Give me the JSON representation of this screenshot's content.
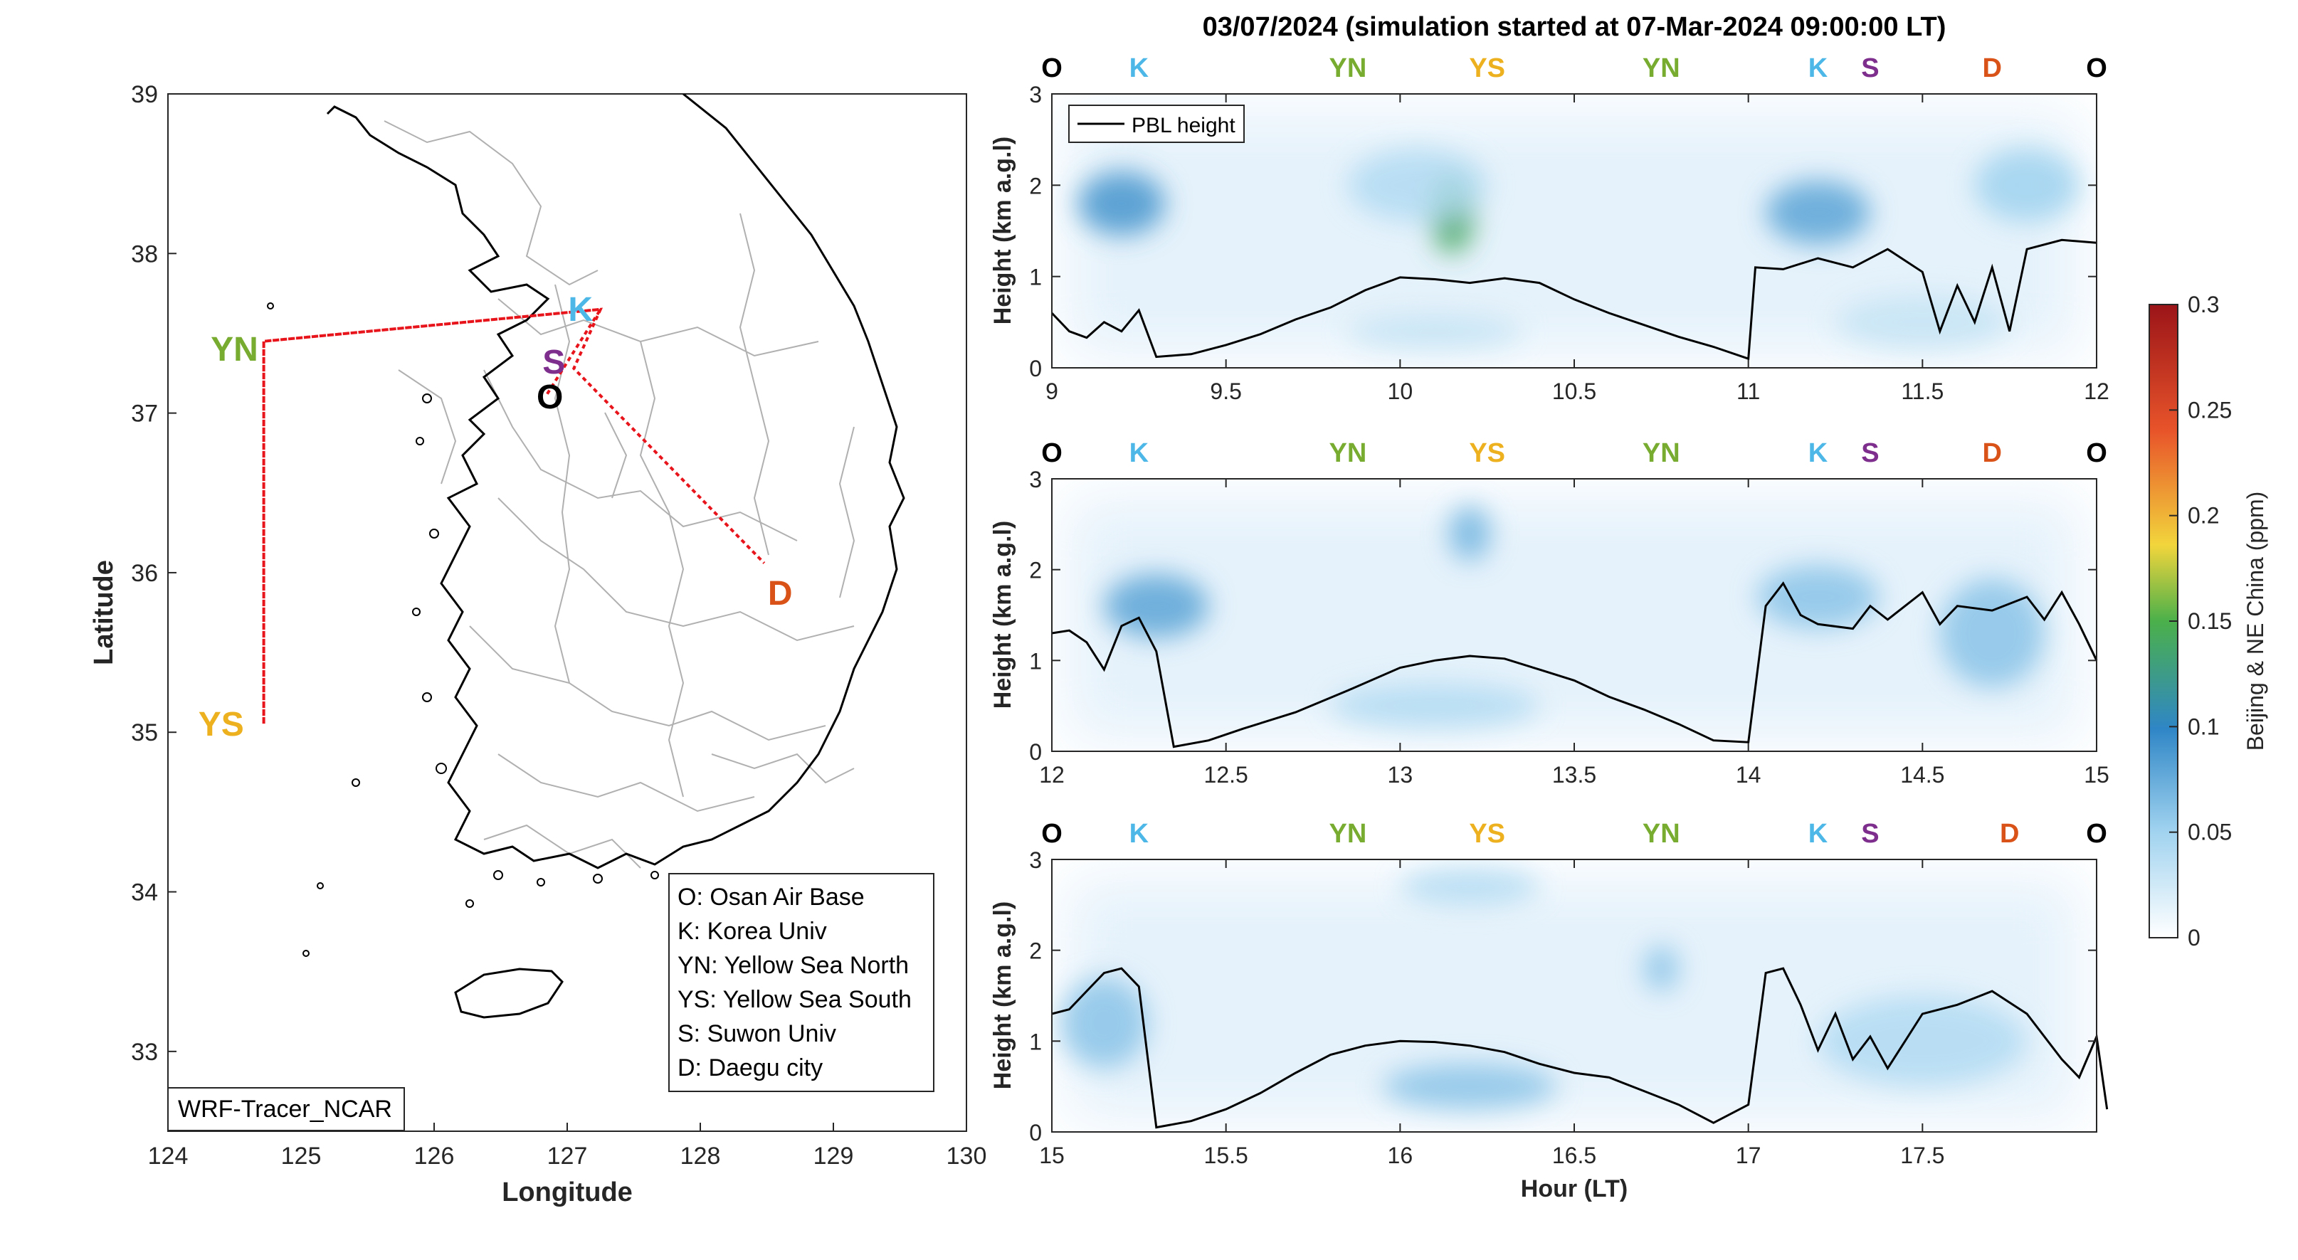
{
  "title": "03/07/2024 (simulation started at 07-Mar-2024 09:00:00 LT)",
  "colors": {
    "O": "#000000",
    "K": "#4db8e8",
    "YN": "#77ac30",
    "YS": "#edb120",
    "S": "#7e2f8e",
    "D": "#d95319",
    "route": "#e8141b",
    "pbl": "#000000"
  },
  "map": {
    "xlabel": "Longitude",
    "ylabel": "Latitude",
    "xlim": [
      124,
      130
    ],
    "ylim": [
      32.5,
      39
    ],
    "xticks": [
      "124",
      "125",
      "126",
      "127",
      "128",
      "129",
      "130"
    ],
    "yticks": [
      "33",
      "34",
      "35",
      "36",
      "37",
      "38",
      "39"
    ],
    "sites": [
      {
        "code": "O",
        "lon": 126.87,
        "lat": 37.1
      },
      {
        "code": "K",
        "lon": 127.1,
        "lat": 37.65
      },
      {
        "code": "YN",
        "lon": 124.5,
        "lat": 37.4
      },
      {
        "code": "YS",
        "lon": 124.4,
        "lat": 35.05
      },
      {
        "code": "S",
        "lon": 126.9,
        "lat": 37.32
      },
      {
        "code": "D",
        "lon": 128.6,
        "lat": 35.87
      }
    ],
    "route": [
      [
        126.85,
        37.12
      ],
      [
        127.25,
        37.65
      ],
      [
        124.72,
        37.45
      ],
      [
        124.72,
        35.05
      ],
      [
        124.72,
        37.45
      ],
      [
        127.25,
        37.65
      ],
      [
        127.05,
        37.28
      ],
      [
        128.48,
        36.06
      ]
    ],
    "legend": [
      "O: Osan Air Base",
      "K: Korea Univ",
      "YN: Yellow Sea North",
      "YS: Yellow Sea South",
      "S: Suwon Univ",
      "D: Daegu city"
    ],
    "model_label": "WRF-Tracer_NCAR"
  },
  "curtains": {
    "ylabel": "Height (km a.g.l)",
    "xlabel": "Hour (LT)",
    "ylim": [
      0,
      3
    ],
    "yticks": [
      "0",
      "1",
      "2",
      "3"
    ],
    "legend_entry": "PBL height",
    "panels": [
      {
        "xlim": [
          9,
          12
        ],
        "xticks": [
          "9",
          "9.5",
          "10",
          "10.5",
          "11",
          "11.5",
          "12"
        ],
        "sites": [
          {
            "code": "O",
            "x": 9.0
          },
          {
            "code": "K",
            "x": 9.25
          },
          {
            "code": "YN",
            "x": 9.85
          },
          {
            "code": "YS",
            "x": 10.25
          },
          {
            "code": "YN",
            "x": 10.75
          },
          {
            "code": "K",
            "x": 11.2
          },
          {
            "code": "S",
            "x": 11.35
          },
          {
            "code": "D",
            "x": 11.7
          },
          {
            "code": "O",
            "x": 12.0
          }
        ],
        "pbl": [
          [
            9.0,
            0.6
          ],
          [
            9.05,
            0.4
          ],
          [
            9.1,
            0.33
          ],
          [
            9.15,
            0.5
          ],
          [
            9.2,
            0.4
          ],
          [
            9.25,
            0.63
          ],
          [
            9.3,
            0.12
          ],
          [
            9.4,
            0.15
          ],
          [
            9.5,
            0.25
          ],
          [
            9.6,
            0.37
          ],
          [
            9.7,
            0.53
          ],
          [
            9.8,
            0.66
          ],
          [
            9.9,
            0.85
          ],
          [
            10.0,
            0.99
          ],
          [
            10.1,
            0.97
          ],
          [
            10.2,
            0.93
          ],
          [
            10.3,
            0.98
          ],
          [
            10.4,
            0.93
          ],
          [
            10.5,
            0.75
          ],
          [
            10.6,
            0.6
          ],
          [
            10.7,
            0.47
          ],
          [
            10.8,
            0.34
          ],
          [
            10.9,
            0.23
          ],
          [
            11.0,
            0.1
          ],
          [
            11.02,
            1.1
          ],
          [
            11.1,
            1.08
          ],
          [
            11.2,
            1.2
          ],
          [
            11.3,
            1.1
          ],
          [
            11.4,
            1.3
          ],
          [
            11.5,
            1.05
          ],
          [
            11.55,
            0.4
          ],
          [
            11.6,
            0.9
          ],
          [
            11.65,
            0.5
          ],
          [
            11.7,
            1.1
          ],
          [
            11.75,
            0.4
          ],
          [
            11.8,
            1.3
          ],
          [
            11.9,
            1.4
          ],
          [
            12.0,
            1.37
          ]
        ],
        "conc": [
          {
            "x": 9.2,
            "y": 1.8,
            "w": 0.25,
            "h": 0.7,
            "v": 0.09
          },
          {
            "x": 10.15,
            "y": 1.7,
            "w": 0.13,
            "h": 0.9,
            "v": 0.14
          },
          {
            "x": 10.05,
            "y": 2.0,
            "w": 0.4,
            "h": 0.8,
            "v": 0.04
          },
          {
            "x": 11.2,
            "y": 1.7,
            "w": 0.3,
            "h": 0.7,
            "v": 0.08
          },
          {
            "x": 11.8,
            "y": 2.0,
            "w": 0.3,
            "h": 0.8,
            "v": 0.05
          },
          {
            "x": 10.1,
            "y": 0.4,
            "w": 0.5,
            "h": 0.4,
            "v": 0.03
          },
          {
            "x": 11.5,
            "y": 0.5,
            "w": 0.5,
            "h": 0.6,
            "v": 0.03
          }
        ]
      },
      {
        "xlim": [
          12,
          15
        ],
        "xticks": [
          "12",
          "12.5",
          "13",
          "13.5",
          "14",
          "14.5",
          "15"
        ],
        "sites": [
          {
            "code": "O",
            "x": 12.0
          },
          {
            "code": "K",
            "x": 12.25
          },
          {
            "code": "YN",
            "x": 12.85
          },
          {
            "code": "YS",
            "x": 13.25
          },
          {
            "code": "YN",
            "x": 13.75
          },
          {
            "code": "K",
            "x": 14.2
          },
          {
            "code": "S",
            "x": 14.35
          },
          {
            "code": "D",
            "x": 14.7
          },
          {
            "code": "O",
            "x": 15.0
          }
        ],
        "pbl": [
          [
            12.0,
            1.3
          ],
          [
            12.05,
            1.33
          ],
          [
            12.1,
            1.2
          ],
          [
            12.15,
            0.9
          ],
          [
            12.2,
            1.38
          ],
          [
            12.25,
            1.47
          ],
          [
            12.3,
            1.1
          ],
          [
            12.35,
            0.05
          ],
          [
            12.45,
            0.12
          ],
          [
            12.55,
            0.25
          ],
          [
            12.7,
            0.43
          ],
          [
            12.85,
            0.67
          ],
          [
            13.0,
            0.92
          ],
          [
            13.1,
            1.0
          ],
          [
            13.2,
            1.05
          ],
          [
            13.3,
            1.02
          ],
          [
            13.4,
            0.9
          ],
          [
            13.5,
            0.78
          ],
          [
            13.6,
            0.6
          ],
          [
            13.7,
            0.46
          ],
          [
            13.8,
            0.3
          ],
          [
            13.9,
            0.12
          ],
          [
            14.0,
            0.1
          ],
          [
            14.05,
            1.6
          ],
          [
            14.1,
            1.85
          ],
          [
            14.15,
            1.5
          ],
          [
            14.2,
            1.4
          ],
          [
            14.3,
            1.35
          ],
          [
            14.35,
            1.6
          ],
          [
            14.4,
            1.45
          ],
          [
            14.5,
            1.75
          ],
          [
            14.55,
            1.4
          ],
          [
            14.6,
            1.6
          ],
          [
            14.7,
            1.55
          ],
          [
            14.8,
            1.7
          ],
          [
            14.85,
            1.45
          ],
          [
            14.9,
            1.75
          ],
          [
            14.95,
            1.4
          ],
          [
            15.0,
            1.0
          ]
        ],
        "conc": [
          {
            "x": 12.3,
            "y": 1.6,
            "w": 0.3,
            "h": 0.7,
            "v": 0.08
          },
          {
            "x": 13.2,
            "y": 2.4,
            "w": 0.12,
            "h": 0.6,
            "v": 0.07
          },
          {
            "x": 13.1,
            "y": 0.5,
            "w": 0.6,
            "h": 0.5,
            "v": 0.04
          },
          {
            "x": 14.2,
            "y": 1.7,
            "w": 0.35,
            "h": 0.7,
            "v": 0.06
          },
          {
            "x": 14.7,
            "y": 1.3,
            "w": 0.3,
            "h": 1.2,
            "v": 0.06
          }
        ]
      },
      {
        "xlim": [
          15,
          18
        ],
        "xticks": [
          "15",
          "15.5",
          "16",
          "16.5",
          "17",
          "17.5"
        ],
        "sites": [
          {
            "code": "O",
            "x": 15.0
          },
          {
            "code": "K",
            "x": 15.25
          },
          {
            "code": "YN",
            "x": 15.85
          },
          {
            "code": "YS",
            "x": 16.25
          },
          {
            "code": "YN",
            "x": 16.75
          },
          {
            "code": "K",
            "x": 17.2
          },
          {
            "code": "S",
            "x": 17.35
          },
          {
            "code": "D",
            "x": 17.75
          },
          {
            "code": "O",
            "x": 18.0
          }
        ],
        "pbl": [
          [
            15.0,
            1.3
          ],
          [
            15.05,
            1.35
          ],
          [
            15.1,
            1.55
          ],
          [
            15.15,
            1.75
          ],
          [
            15.2,
            1.8
          ],
          [
            15.25,
            1.6
          ],
          [
            15.3,
            0.05
          ],
          [
            15.4,
            0.12
          ],
          [
            15.5,
            0.25
          ],
          [
            15.6,
            0.43
          ],
          [
            15.7,
            0.65
          ],
          [
            15.8,
            0.85
          ],
          [
            15.9,
            0.95
          ],
          [
            16.0,
            1.0
          ],
          [
            16.1,
            0.99
          ],
          [
            16.2,
            0.95
          ],
          [
            16.3,
            0.88
          ],
          [
            16.4,
            0.75
          ],
          [
            16.5,
            0.65
          ],
          [
            16.6,
            0.6
          ],
          [
            16.7,
            0.45
          ],
          [
            16.8,
            0.3
          ],
          [
            16.9,
            0.1
          ],
          [
            17.0,
            0.3
          ],
          [
            17.05,
            1.75
          ],
          [
            17.1,
            1.8
          ],
          [
            17.15,
            1.4
          ],
          [
            17.2,
            0.9
          ],
          [
            17.25,
            1.3
          ],
          [
            17.3,
            0.8
          ],
          [
            17.35,
            1.05
          ],
          [
            17.4,
            0.7
          ],
          [
            17.45,
            1.0
          ],
          [
            17.5,
            1.3
          ],
          [
            17.6,
            1.4
          ],
          [
            17.7,
            1.55
          ],
          [
            17.8,
            1.3
          ],
          [
            17.9,
            0.8
          ],
          [
            17.95,
            0.6
          ],
          [
            18.0,
            1.05
          ],
          [
            18.03,
            0.25
          ]
        ],
        "conc": [
          {
            "x": 15.15,
            "y": 1.2,
            "w": 0.25,
            "h": 1.0,
            "v": 0.06
          },
          {
            "x": 16.2,
            "y": 0.5,
            "w": 0.5,
            "h": 0.5,
            "v": 0.06
          },
          {
            "x": 16.2,
            "y": 2.7,
            "w": 0.4,
            "h": 0.4,
            "v": 0.04
          },
          {
            "x": 16.75,
            "y": 1.8,
            "w": 0.1,
            "h": 0.5,
            "v": 0.06
          },
          {
            "x": 17.5,
            "y": 1.0,
            "w": 0.6,
            "h": 1.0,
            "v": 0.04
          }
        ]
      }
    ]
  },
  "colorbar": {
    "label": "Beijing & NE China (ppm)",
    "lim": [
      0,
      0.3
    ],
    "ticks": [
      "0",
      "0.05",
      "0.1",
      "0.15",
      "0.2",
      "0.25",
      "0.3"
    ]
  },
  "chart_data": [
    {
      "type": "scatter",
      "xlabel": "Longitude",
      "ylabel": "Latitude",
      "xlim": [
        124,
        130
      ],
      "ylim": [
        32.5,
        39
      ],
      "sites": [
        {
          "label": "O",
          "lon": 126.87,
          "lat": 37.1
        },
        {
          "label": "K",
          "lon": 127.1,
          "lat": 37.65
        },
        {
          "label": "YN",
          "lon": 124.5,
          "lat": 37.4
        },
        {
          "label": "YS",
          "lon": 124.4,
          "lat": 35.05
        },
        {
          "label": "S",
          "lon": 126.9,
          "lat": 37.32
        },
        {
          "label": "D",
          "lon": 128.6,
          "lat": 35.87
        }
      ]
    },
    {
      "type": "heatmap",
      "title": "03/07/2024 (simulation started at 07-Mar-2024 09:00:00 LT)",
      "xlabel": "Hour (LT)",
      "ylabel": "Height (km a.g.l)",
      "xlim": [
        9,
        18
      ],
      "ylim": [
        0,
        3
      ],
      "colorbar_label": "Beijing & NE China (ppm)",
      "colorbar_lim": [
        0,
        0.3
      ],
      "series": [
        {
          "name": "PBL height"
        }
      ]
    }
  ]
}
